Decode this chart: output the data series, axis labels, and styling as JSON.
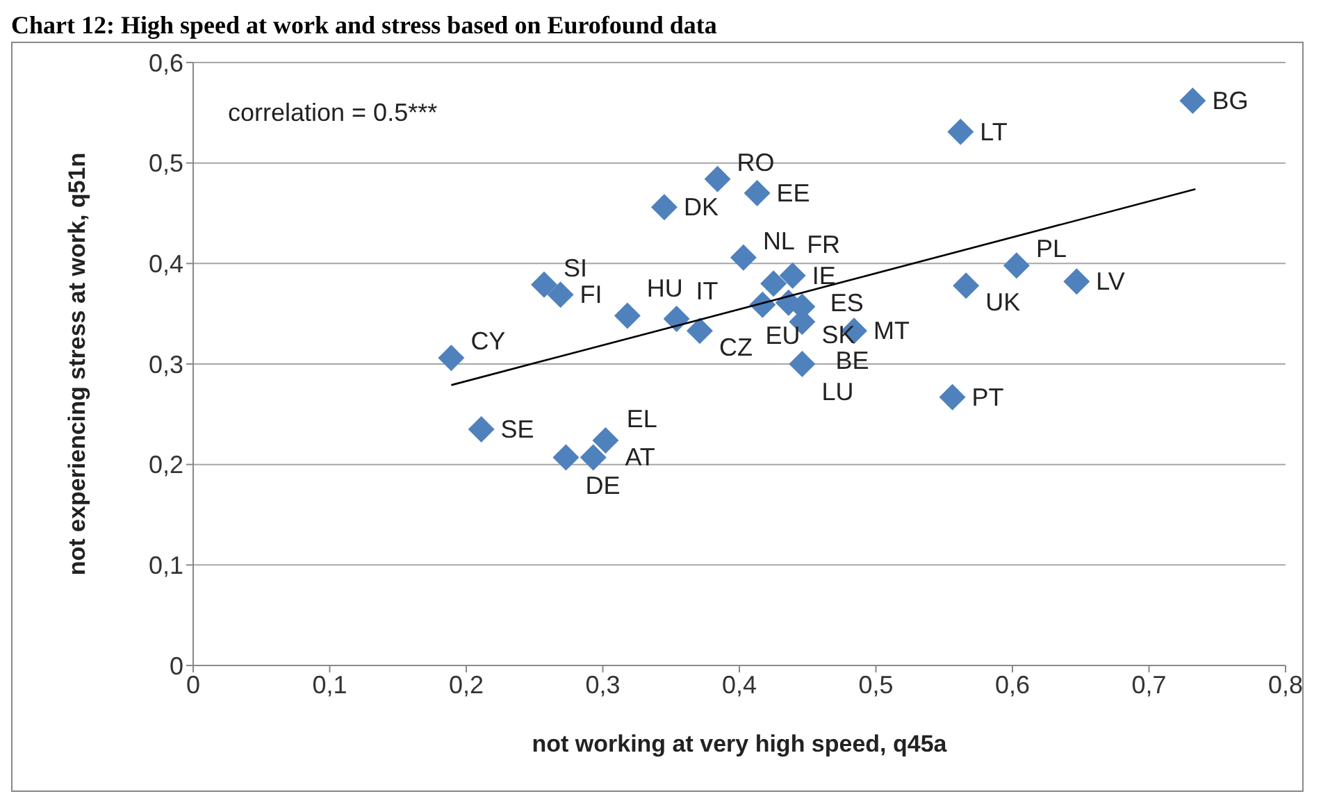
{
  "chart_data": {
    "type": "scatter",
    "title": "Chart 12: High speed at work and stress based on Eurofound data",
    "xlabel": "not working at very high speed, q45a",
    "ylabel": "not experiencing stress at work, q51n",
    "xlim": [
      0,
      0.8
    ],
    "ylim": [
      0,
      0.6
    ],
    "xticks": [
      0,
      {
        "value": 0.1,
        "label": "0,1"
      },
      {
        "value": 0.2,
        "label": "0,2"
      },
      {
        "value": 0.3,
        "label": "0,3"
      },
      {
        "value": 0.4,
        "label": "0,4"
      },
      {
        "value": 0.5,
        "label": "0,5"
      },
      {
        "value": 0.6,
        "label": "0,6"
      },
      {
        "value": 0.7,
        "label": "0,7"
      },
      {
        "value": 0.8,
        "label": "0,8"
      }
    ],
    "yticks": [
      0,
      {
        "value": 0.1,
        "label": "0,1"
      },
      {
        "value": 0.2,
        "label": "0,2"
      },
      {
        "value": 0.3,
        "label": "0,3"
      },
      {
        "value": 0.4,
        "label": "0,4"
      },
      {
        "value": 0.5,
        "label": "0,5"
      },
      {
        "value": 0.6,
        "label": "0,6"
      }
    ],
    "grid": "y",
    "marker": "diamond",
    "series": [
      {
        "color": "#4f81bd",
        "x": [
          0.732,
          0.562,
          0.384,
          0.413,
          0.345,
          0.403,
          0.425,
          0.439,
          0.257,
          0.269,
          0.318,
          0.354,
          0.371,
          0.417,
          0.436,
          0.446,
          0.446,
          0.484,
          0.446,
          0.556,
          0.566,
          0.603,
          0.647,
          0.189,
          0.211,
          0.273,
          0.293,
          0.302
        ],
        "values": [
          0.562,
          0.531,
          0.484,
          0.47,
          0.456,
          0.406,
          0.38,
          0.388,
          0.379,
          0.369,
          0.348,
          0.345,
          0.333,
          0.359,
          0.361,
          0.357,
          0.342,
          0.333,
          0.3,
          0.267,
          0.378,
          0.398,
          0.382,
          0.306,
          0.235,
          0.207,
          0.207,
          0.224
        ]
      },
      {
        "type": "line",
        "color": "#000000",
        "marker": "none",
        "x": [
          0.189,
          0.734
        ],
        "values": [
          0.279,
          0.474
        ]
      }
    ],
    "annotations": [
      "correlation = 0.5***",
      {
        "text": "BG",
        "x": 0.732,
        "y": 0.562
      },
      {
        "text": "LT",
        "x": 0.562,
        "y": 0.531
      },
      {
        "text": "RO",
        "x": 0.384,
        "y": 0.484
      },
      {
        "text": "EE",
        "x": 0.413,
        "y": 0.47
      },
      {
        "text": "DK",
        "x": 0.345,
        "y": 0.456
      },
      {
        "text": "NL",
        "x": 0.403,
        "y": 0.406
      },
      {
        "text": "FR",
        "x": 0.425,
        "y": 0.38
      },
      {
        "text": "IE",
        "x": 0.439,
        "y": 0.388
      },
      {
        "text": "SI",
        "x": 0.257,
        "y": 0.379
      },
      {
        "text": "FI",
        "x": 0.269,
        "y": 0.369
      },
      {
        "text": "HU",
        "x": 0.318,
        "y": 0.348
      },
      {
        "text": "IT",
        "x": 0.354,
        "y": 0.345
      },
      {
        "text": "CZ",
        "x": 0.371,
        "y": 0.333
      },
      {
        "text": "EU",
        "x": 0.417,
        "y": 0.359
      },
      {
        "text": "ES",
        "x": 0.436,
        "y": 0.361
      },
      {
        "text": "SK",
        "x": 0.446,
        "y": 0.357
      },
      {
        "text": "BE",
        "x": 0.446,
        "y": 0.342
      },
      {
        "text": "MT",
        "x": 0.484,
        "y": 0.333
      },
      {
        "text": "LU",
        "x": 0.446,
        "y": 0.3
      },
      {
        "text": "PT",
        "x": 0.556,
        "y": 0.267
      },
      {
        "text": "UK",
        "x": 0.566,
        "y": 0.378
      },
      {
        "text": "PL",
        "x": 0.603,
        "y": 0.398
      },
      {
        "text": "LV",
        "x": 0.647,
        "y": 0.382
      },
      {
        "text": "CY",
        "x": 0.189,
        "y": 0.306
      },
      {
        "text": "SE",
        "x": 0.211,
        "y": 0.235
      },
      {
        "text": "DE",
        "x": 0.273,
        "y": 0.207
      },
      {
        "text": "EL",
        "x": 0.293,
        "y": 0.207
      },
      {
        "text": "AT",
        "x": 0.302,
        "y": 0.224
      }
    ]
  }
}
